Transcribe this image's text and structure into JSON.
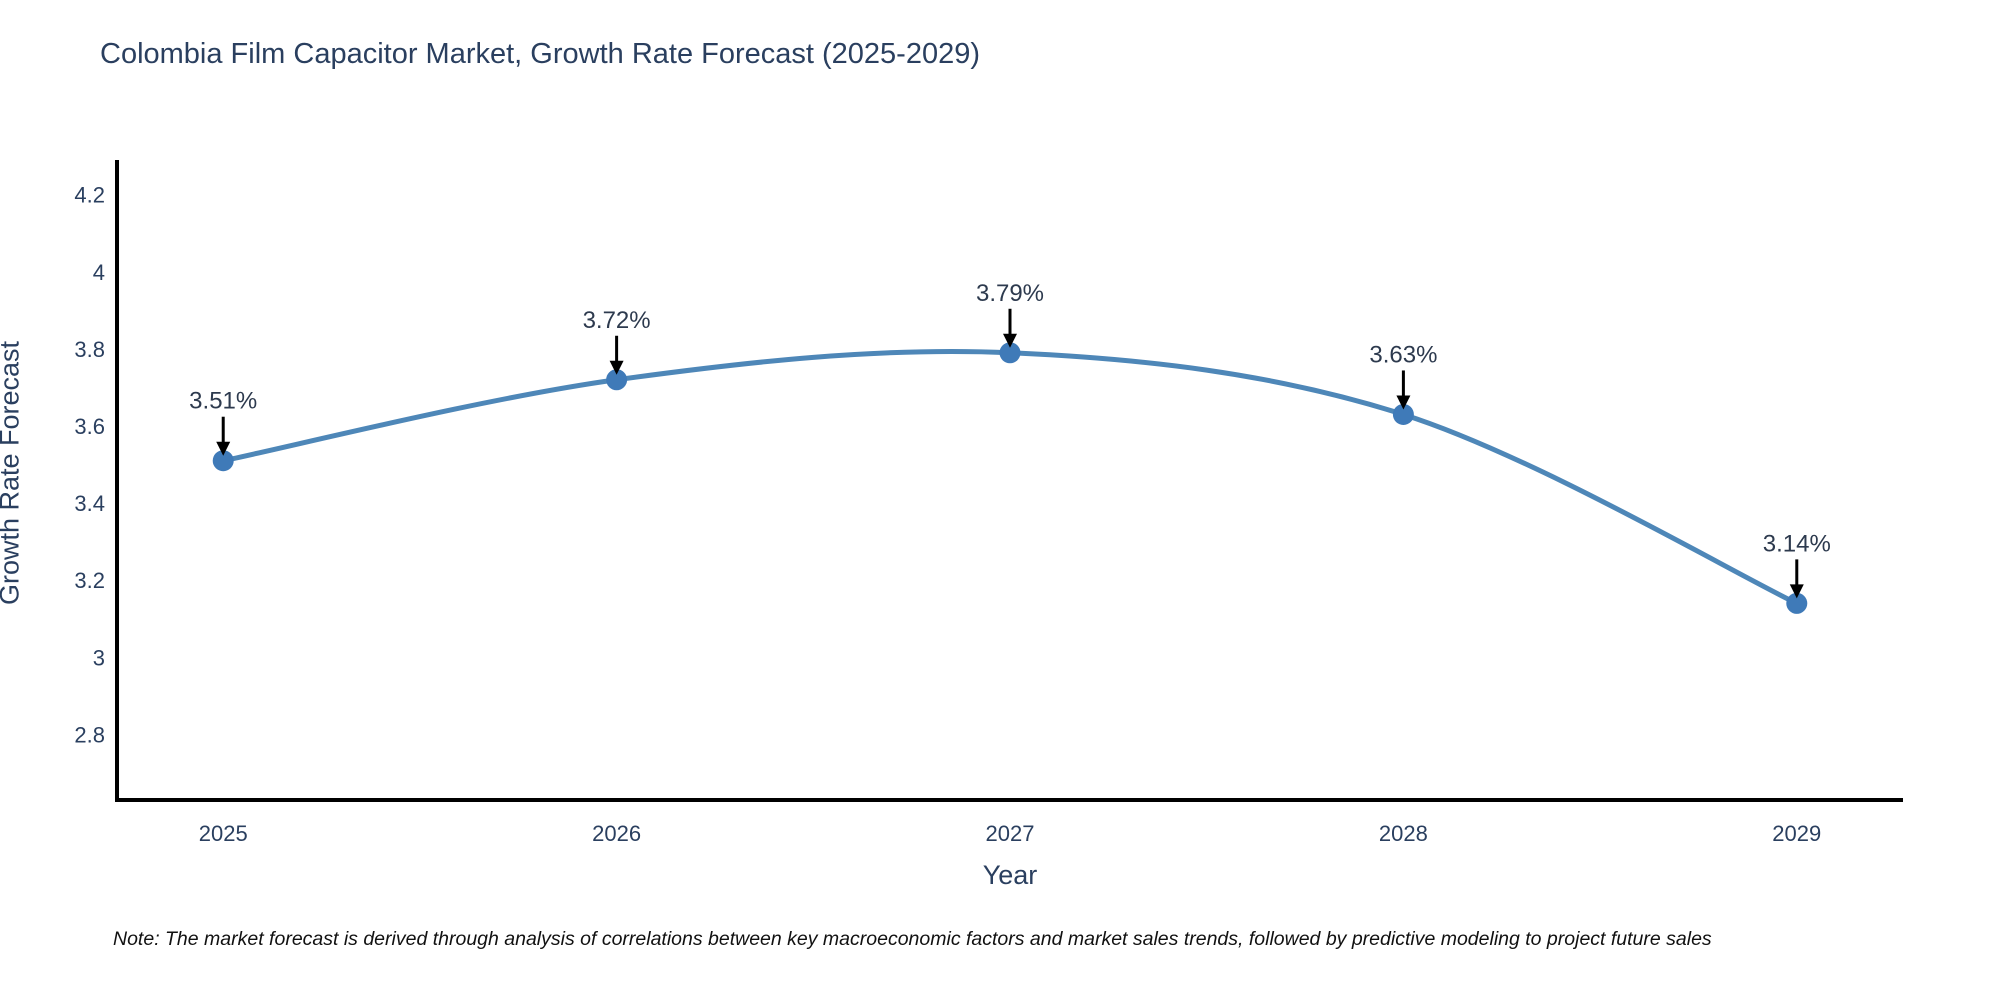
{
  "title": "Colombia Film Capacitor Market, Growth Rate Forecast (2025-2029)",
  "note": "Note: The market forecast is derived through analysis of correlations between key macroeconomic factors and market sales trends, followed by predictive modeling to project future sales",
  "colors": {
    "background": "#ffffff",
    "title_text": "#2a3f5f",
    "tick_text": "#2a3f5f",
    "axis_line": "#000000",
    "line": "#4e87b8",
    "marker": "#3f7ab8",
    "annotation_text": "#2d3a4e",
    "arrow": "#000000",
    "note_text": "#111111"
  },
  "chart_data": {
    "type": "line",
    "title": "Colombia Film Capacitor Market, Growth Rate Forecast (2025-2029)",
    "xlabel": "Year",
    "ylabel": "Growth Rate Forecast",
    "x": [
      2025,
      2026,
      2027,
      2028,
      2029
    ],
    "series": [
      {
        "name": "Growth Rate Forecast",
        "values": [
          3.51,
          3.72,
          3.79,
          3.63,
          3.14
        ]
      }
    ],
    "point_labels": [
      "3.51%",
      "3.72%",
      "3.79%",
      "3.63%",
      "3.14%"
    ],
    "xtick_labels": [
      "2025",
      "2026",
      "2027",
      "2028",
      "2029"
    ],
    "ytick_values": [
      2.8,
      3,
      3.2,
      3.4,
      3.6,
      3.8,
      4,
      4.2
    ],
    "ytick_labels": [
      "2.8",
      "3",
      "3.2",
      "3.4",
      "3.6",
      "3.8",
      "4",
      "4.2"
    ],
    "xlim": [
      2024.73,
      2029.27
    ],
    "ylim": [
      2.63,
      4.29
    ],
    "grid": false,
    "legend": "none",
    "curve": "smooth"
  }
}
